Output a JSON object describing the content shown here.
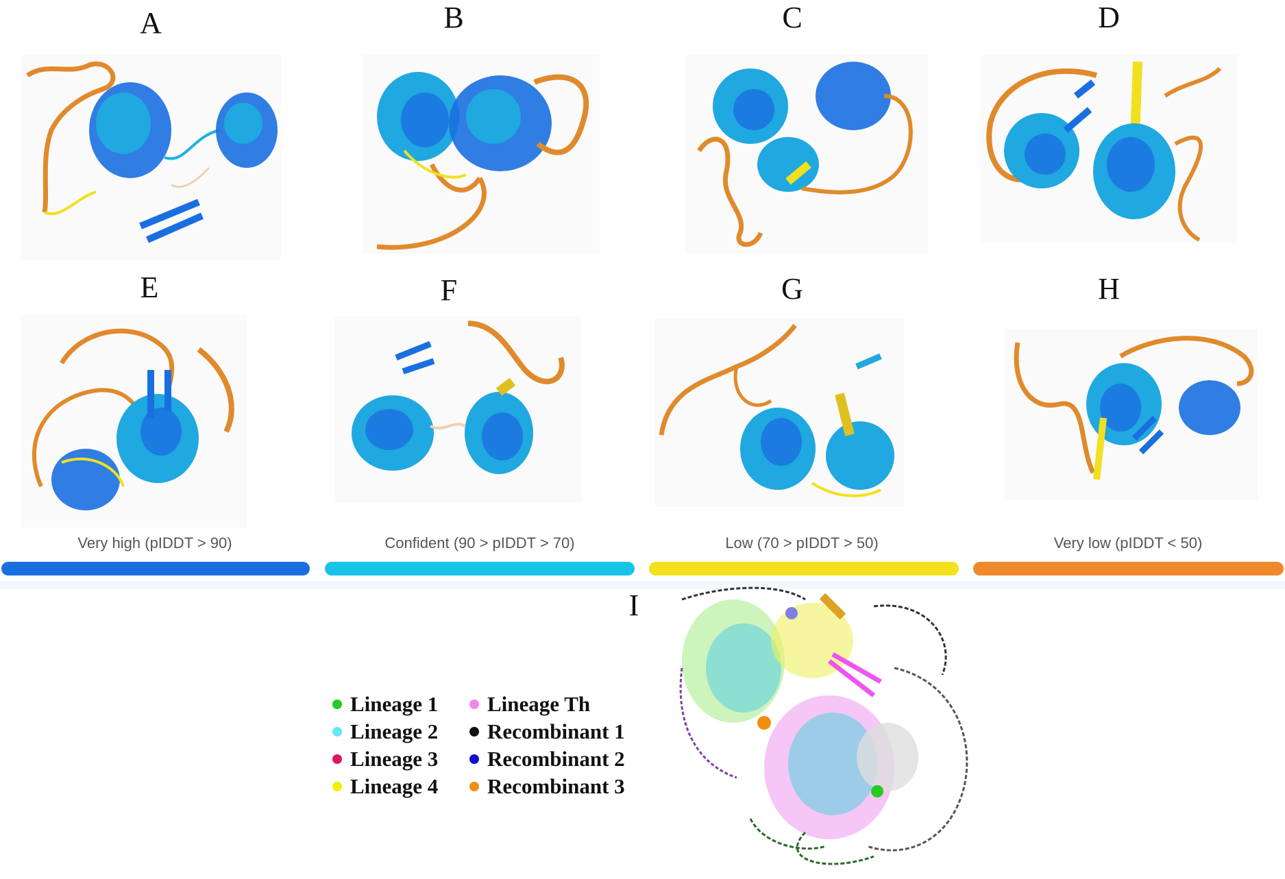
{
  "panels": [
    {
      "letter": "A"
    },
    {
      "letter": "B"
    },
    {
      "letter": "C"
    },
    {
      "letter": "D"
    },
    {
      "letter": "E"
    },
    {
      "letter": "F"
    },
    {
      "letter": "G"
    },
    {
      "letter": "H"
    }
  ],
  "plddt_legend": [
    {
      "label": "Very high (pIDDT > 90)",
      "color": "#1a6fe0"
    },
    {
      "label": "Confident (90 > pIDDT > 70)",
      "color": "#17c4e8"
    },
    {
      "label": "Low (70 > pIDDT > 50)",
      "color": "#f3e21b"
    },
    {
      "label": "Very low (pIDDT < 50)",
      "color": "#ee8a2c"
    }
  ],
  "overlay": {
    "letter": "I",
    "legend": [
      {
        "label": "Lineage 1",
        "color": "#22cc22"
      },
      {
        "label": "Lineage 2",
        "color": "#66e8f0"
      },
      {
        "label": "Lineage 3",
        "color": "#e0185a"
      },
      {
        "label": "Lineage 4",
        "color": "#f0f000"
      },
      {
        "label": "Lineage Th",
        "color": "#ee88ee"
      },
      {
        "label": "Recombinant 1",
        "color": "#111111"
      },
      {
        "label": "Recombinant 2",
        "color": "#1010d0"
      },
      {
        "label": "Recombinant 3",
        "color": "#f09010"
      }
    ]
  }
}
